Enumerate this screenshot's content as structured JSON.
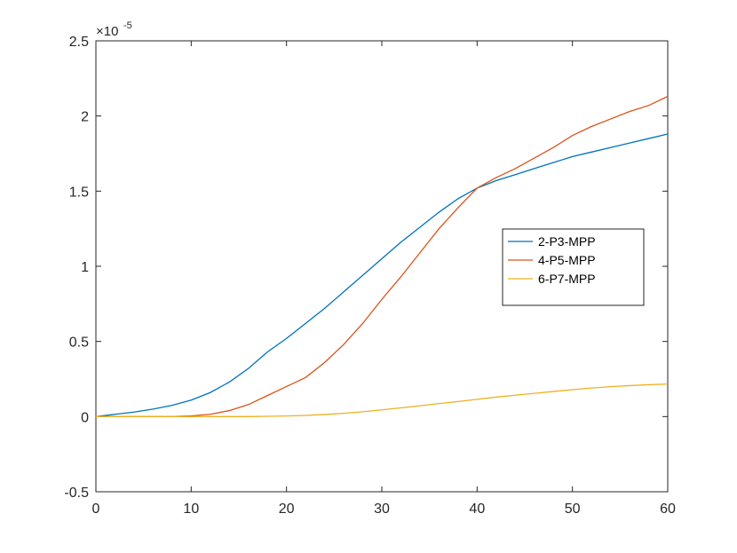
{
  "chart_data": {
    "type": "line",
    "title": "",
    "xlabel": "",
    "ylabel": "",
    "y_multiplier": {
      "base": "×10",
      "exponent": "-5"
    },
    "xlim": [
      0,
      60
    ],
    "ylim": [
      -0.5,
      2.5
    ],
    "x_ticks": [
      "0",
      "10",
      "20",
      "30",
      "40",
      "50",
      "60"
    ],
    "y_ticks": [
      "-0.5",
      "0",
      "0.5",
      "1",
      "1.5",
      "2",
      "2.5"
    ],
    "grid": false,
    "legend_position": "right",
    "series": [
      {
        "name": "2-P3-MPP",
        "color": "#0072BD",
        "x": [
          0,
          2,
          4,
          6,
          8,
          10,
          12,
          14,
          16,
          18,
          20,
          22,
          24,
          26,
          28,
          30,
          32,
          34,
          36,
          38,
          40,
          42,
          44,
          46,
          48,
          50,
          52,
          54,
          56,
          58,
          60
        ],
        "y": [
          0,
          0.015,
          0.03,
          0.05,
          0.075,
          0.11,
          0.16,
          0.23,
          0.32,
          0.43,
          0.52,
          0.62,
          0.72,
          0.83,
          0.94,
          1.05,
          1.16,
          1.26,
          1.36,
          1.45,
          1.52,
          1.57,
          1.61,
          1.65,
          1.69,
          1.73,
          1.76,
          1.79,
          1.82,
          1.85,
          1.88
        ]
      },
      {
        "name": "4-P5-MPP",
        "color": "#D95319",
        "x": [
          0,
          2,
          4,
          6,
          8,
          10,
          12,
          14,
          16,
          18,
          20,
          22,
          24,
          26,
          28,
          30,
          32,
          34,
          36,
          38,
          40,
          42,
          44,
          46,
          48,
          50,
          52,
          54,
          56,
          58,
          60
        ],
        "y": [
          0,
          0,
          0,
          0,
          0,
          0.005,
          0.015,
          0.04,
          0.08,
          0.14,
          0.2,
          0.26,
          0.36,
          0.48,
          0.62,
          0.78,
          0.93,
          1.09,
          1.25,
          1.39,
          1.52,
          1.59,
          1.65,
          1.72,
          1.79,
          1.87,
          1.93,
          1.98,
          2.03,
          2.07,
          2.13
        ]
      },
      {
        "name": "6-P7-MPP",
        "color": "#EDB120",
        "x": [
          0,
          2,
          4,
          6,
          8,
          10,
          12,
          14,
          16,
          18,
          20,
          22,
          24,
          26,
          28,
          30,
          32,
          34,
          36,
          38,
          40,
          42,
          44,
          46,
          48,
          50,
          52,
          54,
          56,
          58,
          60
        ],
        "y": [
          0,
          0,
          0,
          0,
          0,
          0,
          0,
          0,
          0,
          0.002,
          0.004,
          0.008,
          0.014,
          0.022,
          0.032,
          0.045,
          0.058,
          0.072,
          0.087,
          0.1,
          0.115,
          0.13,
          0.142,
          0.155,
          0.167,
          0.179,
          0.19,
          0.199,
          0.206,
          0.212,
          0.217
        ]
      }
    ]
  }
}
